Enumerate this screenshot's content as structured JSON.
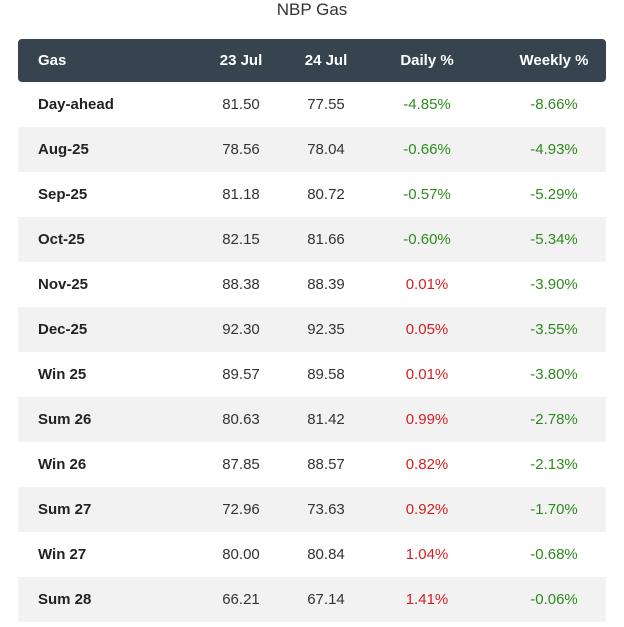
{
  "title": "NBP Gas",
  "headers": {
    "name": "Gas",
    "d1": "23 Jul",
    "d2": "24 Jul",
    "daily": "Daily %",
    "weekly": "Weekly %"
  },
  "colors": {
    "header_bg": "#37444f",
    "negative": "#2f8a1e",
    "positive": "#d12020",
    "stripe": "#f2f2f2"
  },
  "rows": [
    {
      "name": "Day-ahead",
      "d1": "81.50",
      "d2": "77.55",
      "daily": "-4.85%",
      "weekly": "-8.66%"
    },
    {
      "name": "Aug-25",
      "d1": "78.56",
      "d2": "78.04",
      "daily": "-0.66%",
      "weekly": "-4.93%"
    },
    {
      "name": "Sep-25",
      "d1": "81.18",
      "d2": "80.72",
      "daily": "-0.57%",
      "weekly": "-5.29%"
    },
    {
      "name": "Oct-25",
      "d1": "82.15",
      "d2": "81.66",
      "daily": "-0.60%",
      "weekly": "-5.34%"
    },
    {
      "name": "Nov-25",
      "d1": "88.38",
      "d2": "88.39",
      "daily": "0.01%",
      "weekly": "-3.90%"
    },
    {
      "name": "Dec-25",
      "d1": "92.30",
      "d2": "92.35",
      "daily": "0.05%",
      "weekly": "-3.55%"
    },
    {
      "name": "Win 25",
      "d1": "89.57",
      "d2": "89.58",
      "daily": "0.01%",
      "weekly": "-3.80%"
    },
    {
      "name": "Sum 26",
      "d1": "80.63",
      "d2": "81.42",
      "daily": "0.99%",
      "weekly": "-2.78%"
    },
    {
      "name": "Win 26",
      "d1": "87.85",
      "d2": "88.57",
      "daily": "0.82%",
      "weekly": "-2.13%"
    },
    {
      "name": "Sum 27",
      "d1": "72.96",
      "d2": "73.63",
      "daily": "0.92%",
      "weekly": "-1.70%"
    },
    {
      "name": "Win 27",
      "d1": "80.00",
      "d2": "80.84",
      "daily": "1.04%",
      "weekly": "-0.68%"
    },
    {
      "name": "Sum 28",
      "d1": "66.21",
      "d2": "67.14",
      "daily": "1.41%",
      "weekly": "-0.06%"
    }
  ]
}
